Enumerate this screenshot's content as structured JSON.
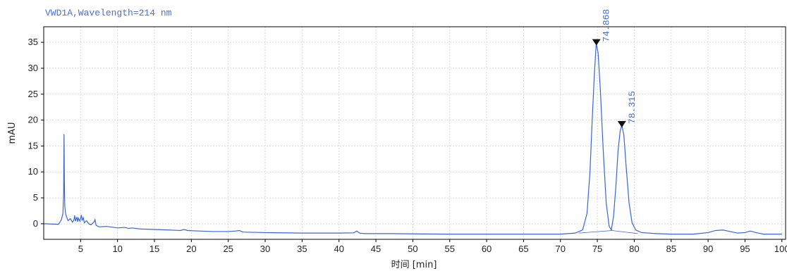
{
  "chart_data": {
    "type": "line",
    "title": "VWD1A,Wavelength=214 nm",
    "xlabel": "时间 [min]",
    "ylabel": "mAU",
    "xlim": [
      0,
      100.5
    ],
    "ylim": [
      -3,
      38
    ],
    "x_ticks": [
      5,
      10,
      15,
      20,
      25,
      30,
      35,
      40,
      45,
      50,
      55,
      60,
      65,
      70,
      75,
      80,
      85,
      90,
      95,
      100
    ],
    "y_ticks": [
      0,
      5,
      10,
      15,
      20,
      25,
      30,
      35
    ],
    "grid": true,
    "series": [
      {
        "color": "#3a64d8",
        "x": [
          0,
          2.0,
          2.4,
          2.6,
          2.7,
          2.75,
          2.8,
          2.85,
          2.95,
          3.1,
          3.3,
          3.6,
          3.9,
          4.1,
          4.2,
          4.3,
          4.5,
          4.6,
          4.7,
          4.9,
          5.1,
          5.2,
          5.35,
          5.5,
          5.8,
          6.1,
          6.4,
          6.8,
          6.95,
          7.1,
          7.5,
          8.5,
          10,
          11,
          11.5,
          12,
          13,
          15,
          17,
          18.5,
          19,
          19.5,
          21,
          23,
          25,
          26,
          26.5,
          27,
          30,
          35,
          40,
          42,
          42.4,
          42.8,
          43.5,
          47,
          50,
          55,
          60,
          65,
          70,
          72,
          73,
          73.6,
          74.0,
          74.3,
          74.6,
          74.85,
          75.1,
          75.4,
          75.8,
          76.2,
          76.6,
          76.9,
          77.2,
          77.5,
          77.8,
          78.1,
          78.32,
          78.6,
          78.9,
          79.3,
          79.7,
          80.2,
          81,
          83,
          85,
          88,
          90,
          91,
          92,
          93,
          94,
          95,
          95.7,
          96.5,
          97.5,
          100
        ],
        "values": [
          0,
          -0.1,
          0.8,
          2.0,
          6.0,
          17.3,
          8.0,
          3.5,
          2.0,
          1.3,
          0.6,
          1.0,
          0.3,
          0.8,
          1.6,
          0.5,
          1.3,
          0.4,
          1.1,
          0.5,
          1.7,
          0.6,
          1.2,
          0.2,
          0.6,
          0.0,
          -0.2,
          0.3,
          0.8,
          -0.3,
          -0.6,
          -0.5,
          -0.8,
          -0.7,
          -0.9,
          -0.8,
          -1.0,
          -1.1,
          -1.2,
          -1.3,
          -1.1,
          -1.3,
          -1.4,
          -1.5,
          -1.5,
          -1.4,
          -1.3,
          -1.6,
          -1.7,
          -1.8,
          -1.8,
          -1.75,
          -1.4,
          -1.8,
          -1.9,
          -1.9,
          -1.95,
          -2.0,
          -2.0,
          -2.0,
          -2.0,
          -1.8,
          -1.2,
          2.0,
          10.0,
          20.0,
          29.0,
          34.8,
          33.0,
          26.0,
          14.0,
          4.0,
          -0.5,
          -1.2,
          1.5,
          7.0,
          14.0,
          18.0,
          19.0,
          17.0,
          11.0,
          4.0,
          0.2,
          -1.2,
          -1.7,
          -1.9,
          -2.0,
          -2.0,
          -1.7,
          -1.3,
          -1.2,
          -1.5,
          -1.8,
          -1.7,
          -1.4,
          -1.7,
          -2.0,
          -2.0
        ]
      }
    ],
    "peak_labels": [
      {
        "x": 74.868,
        "y": 34.8,
        "label": "74.868"
      },
      {
        "x": 78.315,
        "y": 19.0,
        "label": "78.315"
      }
    ],
    "integration_baselines": [
      {
        "x": [
          72.5,
          77.0
        ],
        "y": [
          -1.8,
          -1.3
        ]
      },
      {
        "x": [
          77.0,
          80.5
        ],
        "y": [
          -1.3,
          -1.9
        ]
      }
    ]
  }
}
